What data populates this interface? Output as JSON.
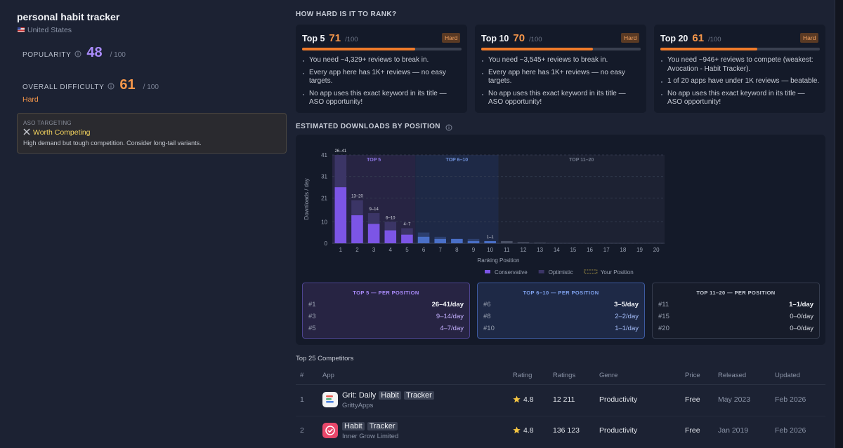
{
  "sidebar": {
    "title": "personal habit tracker",
    "country": "United States",
    "popularity": {
      "label": "POPULARITY",
      "value": 48,
      "max": "/ 100"
    },
    "difficulty": {
      "label": "OVERALL DIFFICULTY",
      "value": 61,
      "max": "/ 100",
      "level": "Hard"
    },
    "aso": {
      "label": "ASO TARGETING",
      "verdict": "Worth Competing",
      "note": "High demand but tough competition. Consider long-tail variants."
    }
  },
  "rank": {
    "title": "HOW HARD IS IT TO RANK?",
    "cards": [
      {
        "label": "Top 5",
        "score": 71,
        "max": "/100",
        "level": "Hard",
        "bullets": [
          "You need ~4,329+ reviews to break in.",
          "Every app here has 1K+ reviews — no easy targets.",
          "No app uses this exact keyword in its title — ASO opportunity!"
        ]
      },
      {
        "label": "Top 10",
        "score": 70,
        "max": "/100",
        "level": "Hard",
        "bullets": [
          "You need ~3,545+ reviews to break in.",
          "Every app here has 1K+ reviews — no easy targets.",
          "No app uses this exact keyword in its title — ASO opportunity!"
        ]
      },
      {
        "label": "Top 20",
        "score": 61,
        "max": "/100",
        "level": "Hard",
        "bullets": [
          "You need ~946+ reviews to compete (weakest: Avocation - Habit Tracker).",
          "1 of 20 apps have under 1K reviews — beatable.",
          "No app uses this exact keyword in its title — ASO opportunity!"
        ]
      }
    ]
  },
  "chart_data": {
    "type": "bar",
    "title": "ESTIMATED DOWNLOADS BY POSITION",
    "x_label": "Ranking Position",
    "y_label": "Downloads / day",
    "categories": [
      "1",
      "2",
      "3",
      "4",
      "5",
      "6",
      "7",
      "8",
      "9",
      "10",
      "11",
      "12",
      "13",
      "14",
      "15",
      "16",
      "17",
      "18",
      "19",
      "20"
    ],
    "series": [
      {
        "name": "Conservative",
        "color": "#7c55e6",
        "values": [
          26,
          13,
          9,
          6,
          4,
          3,
          2,
          2,
          1,
          1,
          1,
          0.5,
          0.3,
          0,
          0,
          0,
          0,
          0,
          0,
          0
        ]
      },
      {
        "name": "Optimistic",
        "color": "#3b3566",
        "values": [
          41,
          20,
          14,
          10,
          7,
          5,
          3,
          2,
          2,
          1,
          1,
          0.5,
          0.3,
          0,
          0,
          0,
          0,
          0,
          0,
          0
        ]
      }
    ],
    "range_labels": [
      "26–41",
      "13–20",
      "9–14",
      "6–10",
      "4–7",
      null,
      null,
      null,
      null,
      "1–1",
      null,
      null,
      null,
      null,
      null,
      null,
      null,
      null,
      null,
      null
    ],
    "extra_legend": "Your Position",
    "bands": [
      {
        "label": "TOP 5",
        "from": 1,
        "to": 5,
        "color": "#7c55e6",
        "light_color": "#3b3566",
        "bg": "#272443",
        "text": "#8f78e8"
      },
      {
        "label": "TOP 6–10",
        "from": 6,
        "to": 10,
        "color": "#4a70c8",
        "light_color": "#2c3f6e",
        "bg": "#1e2946",
        "text": "#6f90d8"
      },
      {
        "label": "TOP 11–20",
        "from": 11,
        "to": 20,
        "color": "#4b5266",
        "light_color": "#343a4c",
        "bg": "#1d2233",
        "text": "#6f7789"
      }
    ],
    "ylim": [
      0,
      41
    ],
    "yticks": [
      0,
      10,
      21,
      31,
      41
    ],
    "grid": true
  },
  "per_position": [
    {
      "title": "TOP 5 — PER POSITION",
      "rows": [
        [
          "#1",
          "26–41/day"
        ],
        [
          "#3",
          "9–14/day"
        ],
        [
          "#5",
          "4–7/day"
        ]
      ]
    },
    {
      "title": "TOP 6–10 — PER POSITION",
      "rows": [
        [
          "#6",
          "3–5/day"
        ],
        [
          "#8",
          "2–2/day"
        ],
        [
          "#10",
          "1–1/day"
        ]
      ]
    },
    {
      "title": "TOP 11–20 — PER POSITION",
      "rows": [
        [
          "#11",
          "1–1/day"
        ],
        [
          "#15",
          "0–0/day"
        ],
        [
          "#20",
          "0–0/day"
        ]
      ]
    }
  ],
  "competitors": {
    "title": "Top 25 Competitors",
    "columns": [
      "#",
      "App",
      "Rating",
      "Ratings",
      "Genre",
      "Price",
      "Released",
      "Updated"
    ],
    "rows": [
      {
        "rank": "1",
        "name": [
          "Grit: Daily",
          "Habit",
          "Tracker"
        ],
        "highlight": [
          false,
          true,
          true
        ],
        "developer": "GrittyApps",
        "rating": "4.8",
        "ratings": "12 211",
        "genre": "Productivity",
        "price": "Free",
        "released": "May 2023",
        "updated": "Feb 2026"
      },
      {
        "rank": "2",
        "name": [
          "Habit",
          "Tracker"
        ],
        "highlight": [
          true,
          true
        ],
        "developer": "Inner Grow Limited",
        "rating": "4.8",
        "ratings": "136 123",
        "genre": "Productivity",
        "price": "Free",
        "released": "Jan 2019",
        "updated": "Feb 2026"
      }
    ]
  }
}
